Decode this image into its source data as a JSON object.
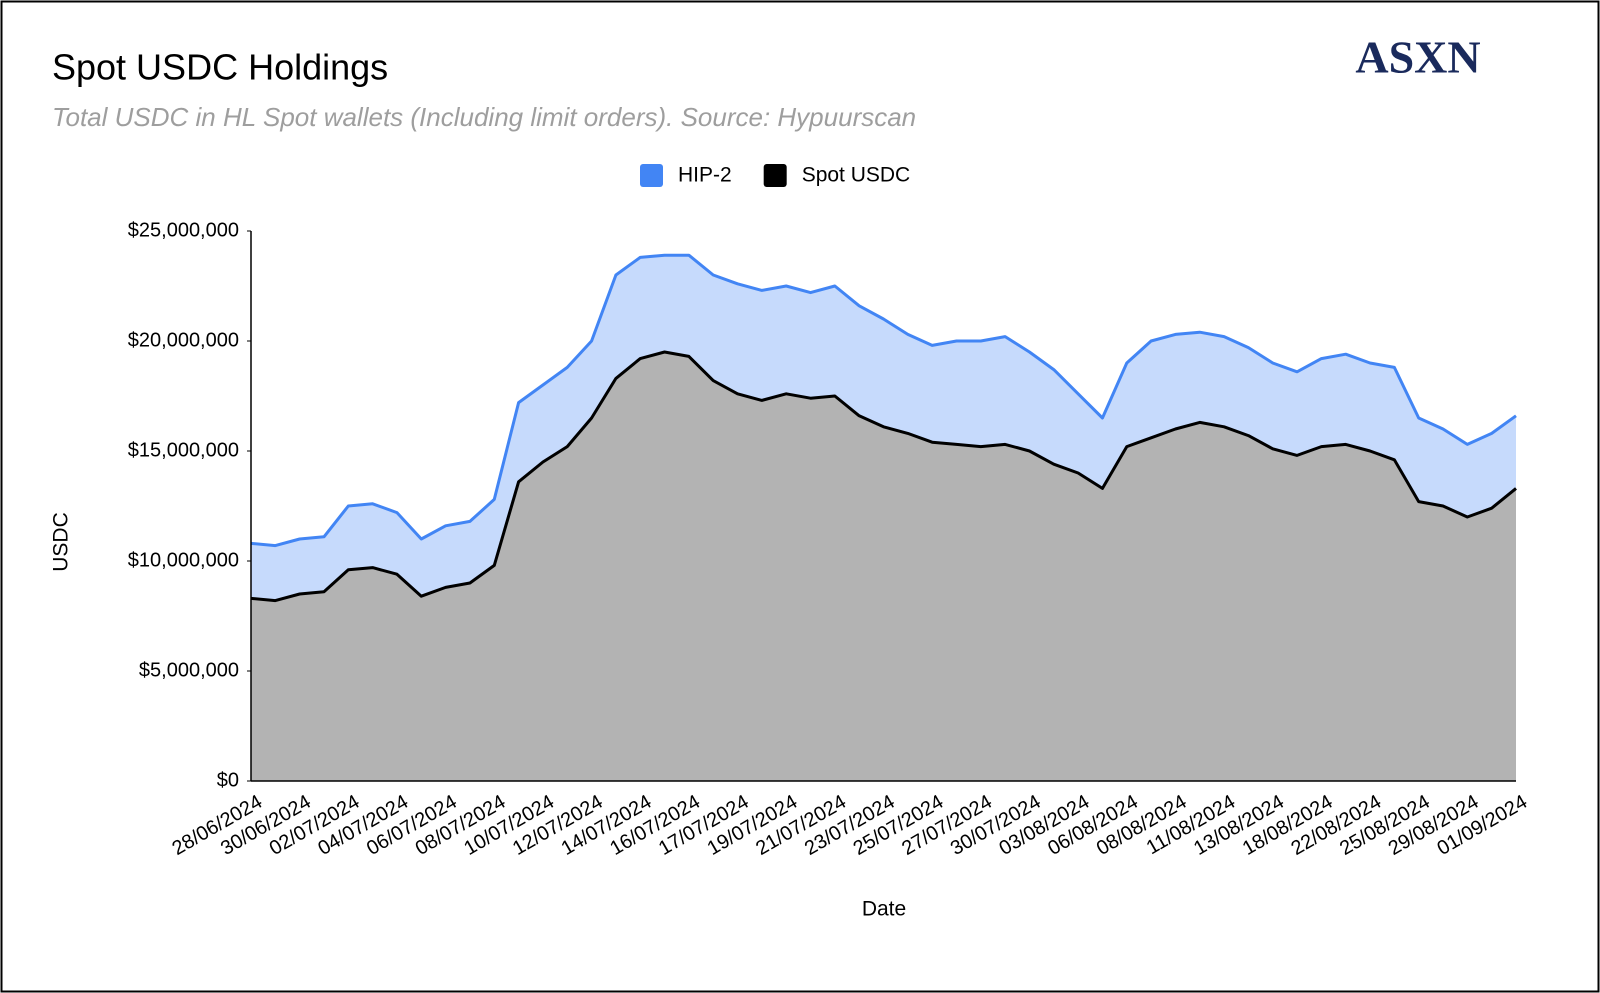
{
  "chart_data": {
    "type": "stacked-area",
    "title": "Spot USDC Holdings",
    "subtitle": "Total USDC in HL Spot wallets (Including limit orders). Source: Hypuurscan",
    "logo": "ASXN",
    "x_label": "Date",
    "y_label": "USDC",
    "legend": "top",
    "categories": [
      "28/06/2024",
      null,
      "30/06/2024",
      null,
      "02/07/2024",
      null,
      "04/07/2024",
      null,
      "06/07/2024",
      null,
      "08/07/2024",
      null,
      "10/07/2024",
      null,
      "12/07/2024",
      null,
      "14/07/2024",
      null,
      "16/07/2024",
      null,
      "17/07/2024",
      null,
      "19/07/2024",
      null,
      "21/07/2024",
      null,
      "23/07/2024",
      null,
      "25/07/2024",
      null,
      "27/07/2024",
      null,
      "30/07/2024",
      null,
      "03/08/2024",
      null,
      "06/08/2024",
      null,
      "08/08/2024",
      null,
      "11/08/2024",
      null,
      "13/08/2024",
      null,
      "18/08/2024",
      null,
      "22/08/2024",
      null,
      "25/08/2024",
      null,
      "29/08/2024",
      null,
      "01/09/2024"
    ],
    "series": [
      {
        "name": "HIP-2",
        "color": "#4285f4",
        "area_color": "#c6dafc",
        "values": [
          2500000,
          2500000,
          2500000,
          2500000,
          2900000,
          2900000,
          2800000,
          2600000,
          2800000,
          2800000,
          3000000,
          3600000,
          3500000,
          3600000,
          3500000,
          4700000,
          4600000,
          4400000,
          4600000,
          4800000,
          5000000,
          5000000,
          4900000,
          4800000,
          5000000,
          5000000,
          4900000,
          4500000,
          4400000,
          4700000,
          4800000,
          4900000,
          4500000,
          4300000,
          3600000,
          3200000,
          3800000,
          4400000,
          4300000,
          4100000,
          4100000,
          4000000,
          3900000,
          3800000,
          4000000,
          4100000,
          4000000,
          4200000,
          3800000,
          3500000,
          3300000,
          3400000,
          3300000
        ]
      },
      {
        "name": "Spot USDC",
        "color": "#000000",
        "area_color": "#b3b3b3",
        "values": [
          8300000,
          8200000,
          8500000,
          8600000,
          9600000,
          9700000,
          9400000,
          8400000,
          8800000,
          9000000,
          9800000,
          13600000,
          14500000,
          15200000,
          16500000,
          18300000,
          19200000,
          19500000,
          19300000,
          18200000,
          17600000,
          17300000,
          17600000,
          17400000,
          17500000,
          16600000,
          16100000,
          15800000,
          15400000,
          15300000,
          15200000,
          15300000,
          15000000,
          14400000,
          14000000,
          13300000,
          15200000,
          15600000,
          16000000,
          16300000,
          16100000,
          15700000,
          15100000,
          14800000,
          15200000,
          15300000,
          15000000,
          14600000,
          12700000,
          12500000,
          12000000,
          12400000,
          13300000
        ]
      }
    ],
    "ylim": [
      0,
      25000000
    ],
    "yticks": [
      {
        "value": 0,
        "label": "$0"
      },
      {
        "value": 5000000,
        "label": "$5,000,000"
      },
      {
        "value": 10000000,
        "label": "$10,000,000"
      },
      {
        "value": 15000000,
        "label": "$15,000,000"
      },
      {
        "value": 20000000,
        "label": "$20,000,000"
      },
      {
        "value": 25000000,
        "label": "$25,000,000"
      }
    ],
    "grid": false
  }
}
